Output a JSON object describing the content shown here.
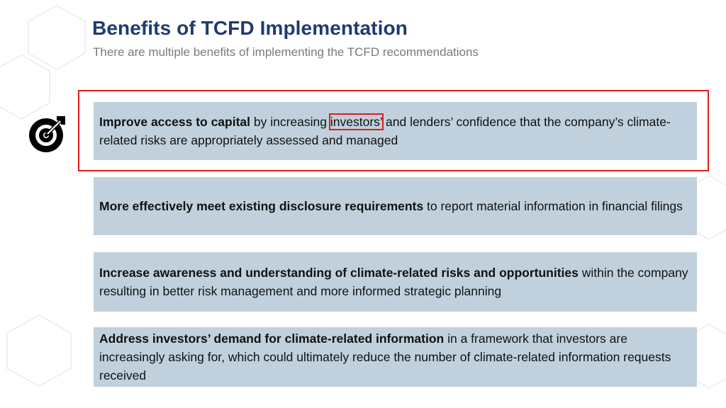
{
  "slide": {
    "title": "Benefits of TCFD Implementation",
    "subtitle": "There are multiple benefits of implementing the TCFD recommendations"
  },
  "benefits": [
    {
      "bold": "Improve access to capital",
      "pre_highlight": " by increasing ",
      "highlight": "investors’",
      "post_highlight": " and lenders’ confidence that the company’s climate-related risks are appropriately assessed and managed"
    },
    {
      "bold": "More effectively meet existing disclosure requirements",
      "text": " to report material information in financial filings"
    },
    {
      "bold": "Increase awareness and understanding of climate-related risks and opportunities",
      "text": " within the company resulting in better risk management and more informed strategic planning"
    },
    {
      "bold": "Address investors’ demand for climate-related information",
      "text": " in a framework that investors are increasingly asking for, which could ultimately reduce the number of climate-related information requests received"
    }
  ],
  "colors": {
    "title": "#1f3b70",
    "box_fill": "#c0d1dd",
    "highlight": "#e31b1b"
  },
  "icons": {
    "benefit_marker": "target-arrow-icon"
  }
}
